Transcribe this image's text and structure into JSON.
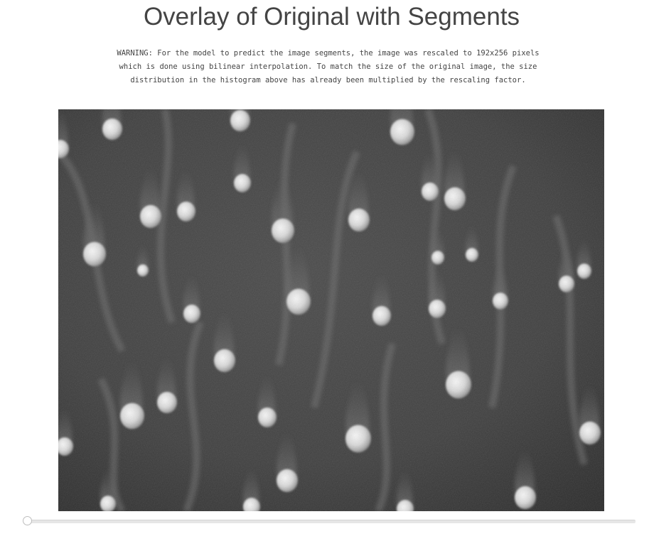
{
  "page": {
    "title": "Overlay of Original with Segments",
    "warning": "WARNING: For the model to predict the image segments, the image was rescaled to 192x256 pixels\nwhich is done using bilinear interpolation. To match the size of the original image, the size\ndistribution in the histogram above has already been multiplied by the rescaling factor."
  },
  "image": {
    "description_icon": "sem-micrograph-image",
    "background_color": "#3e3e3e",
    "particle_color": "#e8e8e8"
  },
  "slider": {
    "value": 0,
    "icon": "slider-handle-icon"
  }
}
